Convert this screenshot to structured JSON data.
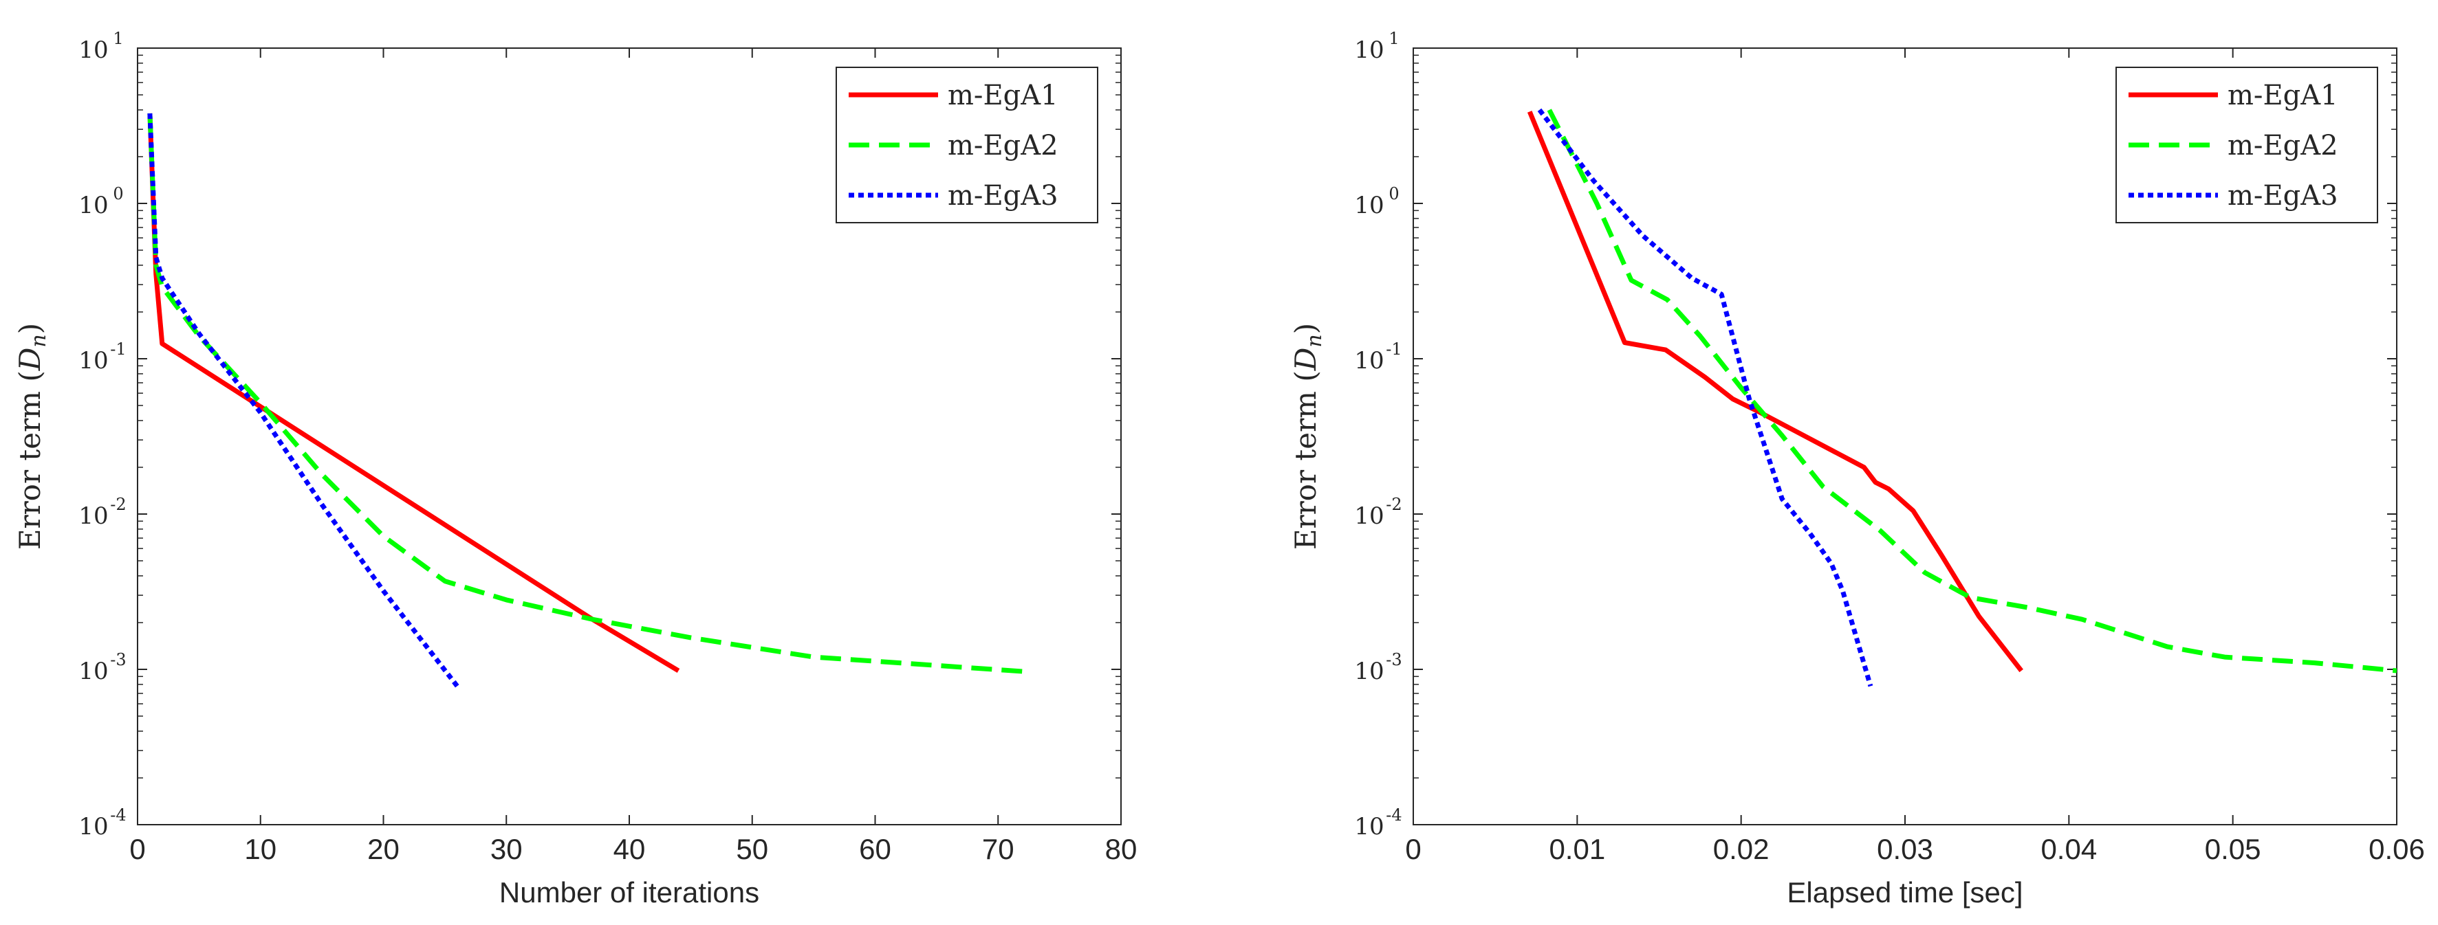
{
  "chart_data": [
    {
      "type": "line",
      "xlabel": "Number of iterations",
      "ylabel": "Error term",
      "ylabel_symbol": "D",
      "ylabel_subscript": "n",
      "xlim": [
        0,
        80
      ],
      "ylim": [
        0.0001,
        10
      ],
      "yscale": "log",
      "xticks": [
        0,
        10,
        20,
        30,
        40,
        50,
        60,
        70,
        80
      ],
      "xtick_labels": [
        "0",
        "10",
        "20",
        "30",
        "40",
        "50",
        "60",
        "70",
        "80"
      ],
      "yticks": [
        0.0001,
        0.001,
        0.01,
        0.1,
        1,
        10
      ],
      "ytick_exponents": [
        "-4",
        "-3",
        "-2",
        "-1",
        "0",
        "1"
      ],
      "ytick_base": "10",
      "legend_position": "top-right",
      "series": [
        {
          "name": "m-EgA1",
          "color": "#ff0000",
          "style": "solid",
          "x": [
            1,
            1.5,
            2,
            37,
            44
          ],
          "y": [
            3.8,
            0.35,
            0.125,
            0.0021,
            0.00098
          ]
        },
        {
          "name": "m-EgA2",
          "color": "#00ff00",
          "style": "dashed",
          "x": [
            1,
            1.5,
            2,
            5,
            10,
            15,
            20,
            25,
            30,
            37,
            45,
            55,
            62,
            72
          ],
          "y": [
            3.8,
            0.4,
            0.29,
            0.14,
            0.052,
            0.018,
            0.0072,
            0.0037,
            0.0028,
            0.0021,
            0.0016,
            0.0012,
            0.0011,
            0.00097
          ]
        },
        {
          "name": "m-EgA3",
          "color": "#0000ff",
          "style": "dotted",
          "x": [
            1,
            1.5,
            2,
            5,
            10,
            15,
            20,
            26
          ],
          "y": [
            3.8,
            0.45,
            0.33,
            0.145,
            0.045,
            0.0115,
            0.0032,
            0.00078
          ]
        }
      ]
    },
    {
      "type": "line",
      "xlabel": "Elapsed time [sec]",
      "ylabel": "Error term",
      "ylabel_symbol": "D",
      "ylabel_subscript": "n",
      "xlim": [
        0,
        0.06
      ],
      "ylim": [
        0.0001,
        10
      ],
      "yscale": "log",
      "xticks": [
        0,
        0.01,
        0.02,
        0.03,
        0.04,
        0.05,
        0.06
      ],
      "xtick_labels": [
        "0",
        "0.01",
        "0.02",
        "0.03",
        "0.04",
        "0.05",
        "0.06"
      ],
      "yticks": [
        0.0001,
        0.001,
        0.01,
        0.1,
        1,
        10
      ],
      "ytick_exponents": [
        "-4",
        "-3",
        "-2",
        "-1",
        "0",
        "1"
      ],
      "ytick_base": "10",
      "legend_position": "top-right",
      "series": [
        {
          "name": "m-EgA1",
          "color": "#ff0000",
          "style": "solid",
          "x": [
            0.0071,
            0.0129,
            0.0154,
            0.0178,
            0.0195,
            0.021,
            0.0275,
            0.0282,
            0.029,
            0.0305,
            0.0322,
            0.0345,
            0.0371
          ],
          "y": [
            3.9,
            0.127,
            0.114,
            0.076,
            0.055,
            0.046,
            0.02,
            0.016,
            0.0145,
            0.0105,
            0.0055,
            0.0022,
            0.00098
          ]
        },
        {
          "name": "m-EgA2",
          "color": "#00ff00",
          "style": "dashed",
          "x": [
            0.0083,
            0.0112,
            0.0133,
            0.0155,
            0.0175,
            0.02,
            0.0225,
            0.025,
            0.0285,
            0.0312,
            0.034,
            0.0375,
            0.0408,
            0.046,
            0.0495,
            0.055,
            0.06
          ],
          "y": [
            4.0,
            1.0,
            0.32,
            0.24,
            0.14,
            0.065,
            0.032,
            0.015,
            0.0078,
            0.0042,
            0.0029,
            0.0025,
            0.0021,
            0.0014,
            0.0012,
            0.0011,
            0.00098
          ]
        },
        {
          "name": "m-EgA3",
          "color": "#0000ff",
          "style": "dotted",
          "x": [
            0.0077,
            0.011,
            0.014,
            0.017,
            0.0188,
            0.0205,
            0.0225,
            0.0242,
            0.0255,
            0.0262,
            0.0279
          ],
          "y": [
            4.0,
            1.4,
            0.62,
            0.33,
            0.26,
            0.055,
            0.0125,
            0.0075,
            0.0048,
            0.0032,
            0.00078
          ]
        }
      ]
    }
  ]
}
